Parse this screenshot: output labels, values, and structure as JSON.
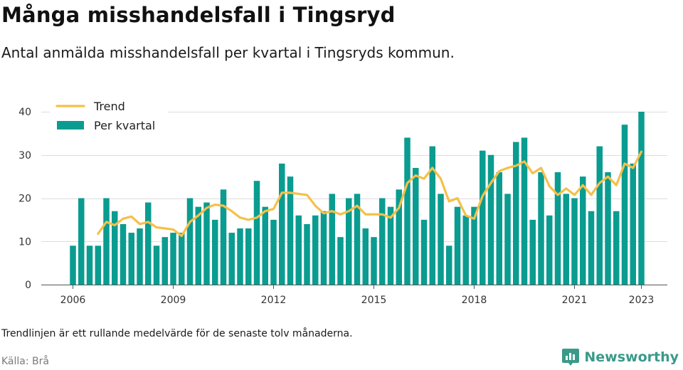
{
  "header": {
    "title": "Många misshandelsfall i Tingsryd",
    "subtitle": "Antal anmälda misshandelsfall per kvartal i Tingsryds kommun."
  },
  "footer": {
    "note": "Trendlinjen är ett rullande medelvärde för de senaste tolv månaderna.",
    "source": "Källa: Brå",
    "brand": "Newsworthy",
    "brand_color": "#3a9a8a"
  },
  "chart_data": {
    "type": "bar",
    "title": "Många misshandelsfall i Tingsryd",
    "subtitle": "Antal anmälda misshandelsfall per kvartal i Tingsryds kommun.",
    "xlabel": "",
    "ylabel": "",
    "ylim": [
      0,
      40
    ],
    "yticks": [
      0,
      10,
      20,
      30,
      40
    ],
    "xticks": [
      "2006",
      "2009",
      "2012",
      "2015",
      "2018",
      "2021",
      "2023"
    ],
    "grid": true,
    "legend_position": "top-left",
    "categories": [
      "2006 Q1",
      "2006 Q2",
      "2006 Q3",
      "2006 Q4",
      "2007 Q1",
      "2007 Q2",
      "2007 Q3",
      "2007 Q4",
      "2008 Q1",
      "2008 Q2",
      "2008 Q3",
      "2008 Q4",
      "2009 Q1",
      "2009 Q2",
      "2009 Q3",
      "2009 Q4",
      "2010 Q1",
      "2010 Q2",
      "2010 Q3",
      "2010 Q4",
      "2011 Q1",
      "2011 Q2",
      "2011 Q3",
      "2011 Q4",
      "2012 Q1",
      "2012 Q2",
      "2012 Q3",
      "2012 Q4",
      "2013 Q1",
      "2013 Q2",
      "2013 Q3",
      "2013 Q4",
      "2014 Q1",
      "2014 Q2",
      "2014 Q3",
      "2014 Q4",
      "2015 Q1",
      "2015 Q2",
      "2015 Q3",
      "2015 Q4",
      "2016 Q1",
      "2016 Q2",
      "2016 Q3",
      "2016 Q4",
      "2017 Q1",
      "2017 Q2",
      "2017 Q3",
      "2017 Q4",
      "2018 Q1",
      "2018 Q2",
      "2018 Q3",
      "2018 Q4",
      "2019 Q1",
      "2019 Q2",
      "2019 Q3",
      "2019 Q4",
      "2020 Q1",
      "2020 Q2",
      "2020 Q3",
      "2020 Q4",
      "2021 Q1",
      "2021 Q2",
      "2021 Q3",
      "2021 Q4",
      "2022 Q1",
      "2022 Q2",
      "2022 Q3",
      "2022 Q4",
      "2023 Q1"
    ],
    "series": [
      {
        "name": "Per kvartal",
        "type": "bar",
        "color": "#0a9c90",
        "values": [
          9,
          20,
          9,
          9,
          20,
          17,
          14,
          12,
          13,
          19,
          9,
          11,
          12,
          12,
          20,
          18,
          19,
          15,
          22,
          12,
          13,
          13,
          24,
          18,
          15,
          28,
          25,
          16,
          14,
          16,
          17,
          21,
          11,
          20,
          21,
          13,
          11,
          20,
          18,
          22,
          34,
          27,
          15,
          32,
          21,
          9,
          18,
          16,
          18,
          31,
          30,
          26,
          21,
          33,
          34,
          15,
          26,
          16,
          26,
          21,
          20,
          25,
          17,
          32,
          26,
          17,
          37,
          28,
          40
        ]
      },
      {
        "name": "Trend",
        "type": "line",
        "color": "#f5c04a",
        "values": [
          null,
          null,
          null,
          11.75,
          14.5,
          13.75,
          15.25,
          15.75,
          14,
          14.5,
          13.25,
          13,
          12.75,
          11.25,
          14.5,
          16,
          17.75,
          18.5,
          18.25,
          17,
          15.5,
          15,
          15.5,
          17,
          17.5,
          21.25,
          21.25,
          21,
          20.75,
          18.25,
          16.5,
          17,
          16.25,
          17,
          18.25,
          16.25,
          16.25,
          16.25,
          15.5,
          17.75,
          23.5,
          25.25,
          24.5,
          27,
          24.5,
          19.25,
          20,
          16,
          15.25,
          20.5,
          23.5,
          26.25,
          27,
          27.5,
          28.5,
          25.75,
          27,
          22.75,
          20.75,
          22.25,
          20.75,
          23,
          20.75,
          23.5,
          25,
          23,
          28,
          27,
          30.75
        ]
      }
    ]
  }
}
